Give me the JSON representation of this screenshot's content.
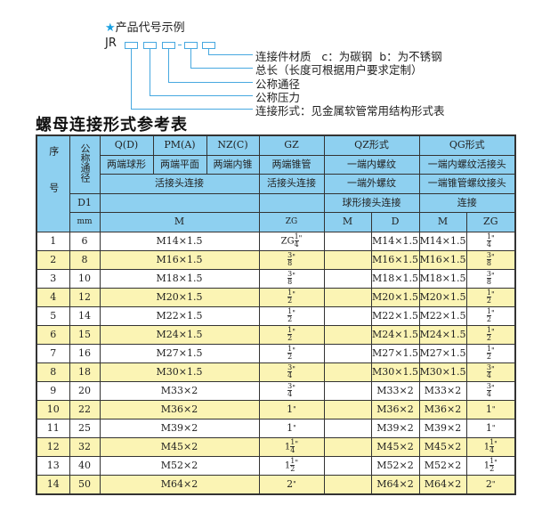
{
  "legend": {
    "title": "产品代号示例",
    "code_prefix": "JR",
    "labels": [
      "连接件材质   c：为碳钢  b：为不锈钢",
      "总长（长度可根据用户要求定制）",
      "公称通径",
      "公称压力",
      "连接形式：见金属软管常用结构形式表"
    ]
  },
  "table_title": "螺母连接形式参考表",
  "header": {
    "seq": "序号",
    "dn": "公称通径",
    "d1": "D1",
    "mm": "mm",
    "q": "Q(D)",
    "pm": "PM(A)",
    "nz": "NZ(C)",
    "gz": "GZ",
    "qz": "QZ形式",
    "qg": "QG形式",
    "q2": "两端球形",
    "pm2": "两端平面",
    "nz2": "两端内锥",
    "gz2": "两端锥管",
    "qz2": "一端内螺纹",
    "qg2": "一端内螺纹活接头",
    "join": "活接头连接",
    "gz3": "活接头连接",
    "qz3": "一端外螺纹",
    "qg3": "一端锥管螺纹接头",
    "qz4": "球形接头连接",
    "qg4": "连接",
    "m": "M",
    "zg": "ZG",
    "qzm": "M",
    "qzd": "D",
    "qgm": "M",
    "qgzg": "ZG"
  },
  "rows": [
    {
      "no": "1",
      "dn": "6",
      "m": "M14×1.5",
      "zg": {
        "whole": "ZG",
        "num": "1",
        "den": "4"
      },
      "qzd": "M14×1.5",
      "qgm": "M14×1.5",
      "qgzg": {
        "whole": "",
        "num": "1",
        "den": "4"
      }
    },
    {
      "no": "2",
      "dn": "8",
      "m": "M16×1.5",
      "zg": {
        "whole": "",
        "num": "3",
        "den": "8"
      },
      "qzd": "M16×1.5",
      "qgm": "M16×1.5",
      "qgzg": {
        "whole": "",
        "num": "3",
        "den": "8"
      }
    },
    {
      "no": "3",
      "dn": "10",
      "m": "M18×1.5",
      "zg": {
        "whole": "",
        "num": "3",
        "den": "8"
      },
      "qzd": "M18×1.5",
      "qgm": "M18×1.5",
      "qgzg": {
        "whole": "",
        "num": "3",
        "den": "8"
      }
    },
    {
      "no": "4",
      "dn": "12",
      "m": "M20×1.5",
      "zg": {
        "whole": "",
        "num": "1",
        "den": "2"
      },
      "qzd": "M20×1.5",
      "qgm": "M20×1.5",
      "qgzg": {
        "whole": "",
        "num": "1",
        "den": "2"
      }
    },
    {
      "no": "5",
      "dn": "14",
      "m": "M22×1.5",
      "zg": {
        "whole": "",
        "num": "1",
        "den": "2"
      },
      "qzd": "M22×1.5",
      "qgm": "M22×1.5",
      "qgzg": {
        "whole": "",
        "num": "1",
        "den": "2"
      }
    },
    {
      "no": "6",
      "dn": "15",
      "m": "M24×1.5",
      "zg": {
        "whole": "",
        "num": "1",
        "den": "2"
      },
      "qzd": "M24×1.5",
      "qgm": "M24×1.5",
      "qgzg": {
        "whole": "",
        "num": "1",
        "den": "2"
      }
    },
    {
      "no": "7",
      "dn": "16",
      "m": "M27×1.5",
      "zg": {
        "whole": "",
        "num": "1",
        "den": "2"
      },
      "qzd": "M27×1.5",
      "qgm": "M27×1.5",
      "qgzg": {
        "whole": "",
        "num": "1",
        "den": "2"
      }
    },
    {
      "no": "8",
      "dn": "18",
      "m": "M30×1.5",
      "zg": {
        "whole": "",
        "num": "3",
        "den": "4"
      },
      "qzd": "M30×1.5",
      "qgm": "M30×1.5",
      "qgzg": {
        "whole": "",
        "num": "3",
        "den": "4"
      }
    },
    {
      "no": "9",
      "dn": "20",
      "m": "M33×2",
      "zg": {
        "whole": "",
        "num": "3",
        "den": "4"
      },
      "qzd": "M33×2",
      "qgm": "M33×2",
      "qgzg": {
        "whole": "",
        "num": "3",
        "den": "4"
      }
    },
    {
      "no": "10",
      "dn": "22",
      "m": "M36×2",
      "zg": {
        "whole": "1",
        "num": "",
        "den": ""
      },
      "qzd": "M36×2",
      "qgm": "M36×2",
      "qgzg": {
        "whole": "1",
        "num": "",
        "den": ""
      }
    },
    {
      "no": "11",
      "dn": "25",
      "m": "M39×2",
      "zg": {
        "whole": "1",
        "num": "",
        "den": ""
      },
      "qzd": "M39×2",
      "qgm": "M39×2",
      "qgzg": {
        "whole": "1",
        "num": "",
        "den": ""
      }
    },
    {
      "no": "12",
      "dn": "32",
      "m": "M45×2",
      "zg": {
        "whole": "1",
        "num": "1",
        "den": "4"
      },
      "qzd": "M45×2",
      "qgm": "M45×2",
      "qgzg": {
        "whole": "1",
        "num": "1",
        "den": "4"
      }
    },
    {
      "no": "13",
      "dn": "40",
      "m": "M52×2",
      "zg": {
        "whole": "1",
        "num": "1",
        "den": "2"
      },
      "qzd": "M52×2",
      "qgm": "M52×2",
      "qgzg": {
        "whole": "1",
        "num": "1",
        "den": "2"
      }
    },
    {
      "no": "14",
      "dn": "50",
      "m": "M64×2",
      "zg": {
        "whole": "2",
        "num": "",
        "den": ""
      },
      "qzd": "M64×2",
      "qgm": "M64×2",
      "qgzg": {
        "whole": "2",
        "num": "",
        "den": ""
      }
    }
  ],
  "inch_mark": "\"",
  "colors": {
    "header": "#8ed0f0",
    "stripe": "#fbf4b4",
    "accent": "#47a8e0"
  }
}
